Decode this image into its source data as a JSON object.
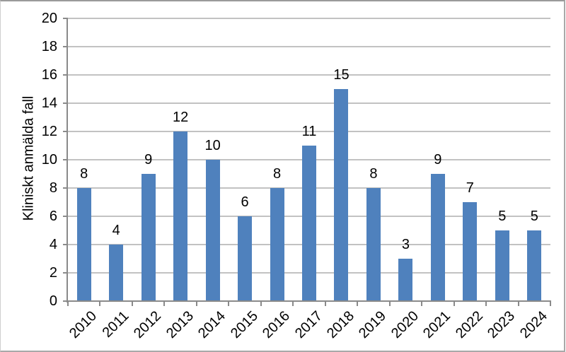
{
  "chart_data": {
    "type": "bar",
    "categories": [
      "2010",
      "2011",
      "2012",
      "2013",
      "2014",
      "2015",
      "2016",
      "2017",
      "2018",
      "2019",
      "2020",
      "2021",
      "2022",
      "2023",
      "2024"
    ],
    "values": [
      8,
      4,
      9,
      12,
      10,
      6,
      8,
      11,
      15,
      8,
      3,
      9,
      7,
      5,
      5
    ],
    "title": "",
    "xlabel": "",
    "ylabel": "Kliniskt anmälda fall",
    "ylim": [
      0,
      20
    ],
    "yticks": [
      0,
      2,
      4,
      6,
      8,
      10,
      12,
      14,
      16,
      18,
      20
    ],
    "grid": true,
    "legend": "none",
    "data_labels": true,
    "bar_color": "#4F81BD",
    "gridline_color": "#C2C2C2",
    "axis_color": "#8A8A8A",
    "text_color": "#000000"
  }
}
